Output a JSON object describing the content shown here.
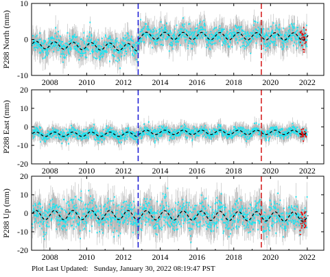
{
  "chart_data": [
    {
      "type": "scatter",
      "station": "P288",
      "ylabel": "P288 North (mm)",
      "ylim": [
        -10,
        10
      ],
      "yticks": [
        -10,
        0,
        10
      ],
      "xlim": [
        2007.0,
        2022.9
      ],
      "xticks": [
        2008,
        2010,
        2012,
        2014,
        2016,
        2018,
        2020,
        2022
      ],
      "xtick_labels": [
        "2008",
        "2010",
        "2012",
        "2014",
        "2016",
        "2018",
        "2020",
        "2022"
      ],
      "offset_before": -1.5,
      "trend_before": -0.12,
      "offset_after": 1.0,
      "trend_after": -0.02,
      "seasonal_amplitude": 1.0,
      "scatter_sd": 1.5,
      "error_bar": 2.5,
      "event_lines": [
        {
          "x": 2012.8,
          "color": "#1f1fd6"
        },
        {
          "x": 2019.5,
          "color": "#d62020"
        }
      ],
      "colors": {
        "points": "#1ee3f0",
        "error_bars": "#b8b8b8",
        "model": "#000000",
        "outliers": "#e01010"
      }
    },
    {
      "type": "scatter",
      "station": "P288",
      "ylabel": "P288 East (mm)",
      "ylim": [
        -20,
        20
      ],
      "yticks": [
        -20,
        -10,
        0,
        10,
        20
      ],
      "xlim": [
        2007.0,
        2022.9
      ],
      "xticks": [
        2008,
        2010,
        2012,
        2014,
        2016,
        2018,
        2020,
        2022
      ],
      "xtick_labels": [
        "2008",
        "2010",
        "2012",
        "2014",
        "2016",
        "2018",
        "2020",
        "2022"
      ],
      "offset_before": -4.0,
      "trend_before": 0.0,
      "offset_after": -3.0,
      "trend_after": 0.0,
      "seasonal_amplitude": 1.2,
      "scatter_sd": 1.4,
      "error_bar": 3.0,
      "event_lines": [
        {
          "x": 2012.8,
          "color": "#1f1fd6"
        },
        {
          "x": 2019.5,
          "color": "#d62020"
        }
      ],
      "colors": {
        "points": "#1ee3f0",
        "error_bars": "#b8b8b8",
        "model": "#000000",
        "outliers": "#e01010"
      }
    },
    {
      "type": "scatter",
      "station": "P288",
      "ylabel": "P288 Up (mm)",
      "ylim": [
        -20,
        20
      ],
      "yticks": [
        -20,
        -10,
        0,
        10,
        20
      ],
      "xlim": [
        2007.0,
        2022.9
      ],
      "xticks": [
        2008,
        2010,
        2012,
        2014,
        2016,
        2018,
        2020,
        2022
      ],
      "xtick_labels": [
        "2008",
        "2010",
        "2012",
        "2014",
        "2016",
        "2018",
        "2020",
        "2022"
      ],
      "offset_before": -1.0,
      "trend_before": 0.0,
      "offset_after": -1.0,
      "trend_after": -0.1,
      "seasonal_amplitude": 2.5,
      "scatter_sd": 4.0,
      "error_bar": 6.0,
      "event_lines": [
        {
          "x": 2012.8,
          "color": "#1f1fd6"
        },
        {
          "x": 2019.5,
          "color": "#d62020"
        }
      ],
      "colors": {
        "points": "#1ee3f0",
        "error_bars": "#b8b8b8",
        "model": "#000000",
        "outliers": "#e01010"
      }
    }
  ],
  "footer": "Plot Last Updated:   Sunday, January 30, 2022 08:19:47 PST"
}
